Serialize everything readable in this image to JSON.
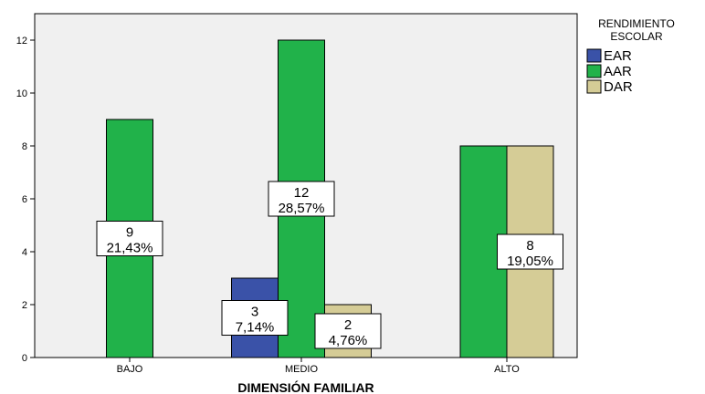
{
  "chart_data": {
    "type": "bar",
    "title": "",
    "xlabel": "DIMENSIÓN FAMILIAR",
    "ylabel": "",
    "categories": [
      "BAJO",
      "MEDIO",
      "ALTO"
    ],
    "ylim": [
      0,
      13
    ],
    "yticks": [
      0,
      2,
      4,
      6,
      8,
      10,
      12
    ],
    "grid": false,
    "legend": {
      "title": [
        "RENDIMIENTO",
        "ESCOLAR"
      ],
      "placement": "right"
    },
    "series": [
      {
        "name": "EAR",
        "color": "#3a52a8",
        "values": [
          null,
          3,
          null
        ],
        "labels": [
          null,
          [
            "3",
            "7,14%"
          ],
          null
        ]
      },
      {
        "name": "AAR",
        "color": "#21b24a",
        "values": [
          9,
          12,
          8
        ],
        "labels": [
          [
            "9",
            "21,43%"
          ],
          [
            "12",
            "28,57%"
          ],
          null
        ]
      },
      {
        "name": "DAR",
        "color": "#d5cc96",
        "values": [
          null,
          2,
          8
        ],
        "labels": [
          null,
          [
            "2",
            "4,76%"
          ],
          [
            "8",
            "19,05%"
          ]
        ]
      }
    ],
    "plot_background": "#f0f0f0"
  }
}
